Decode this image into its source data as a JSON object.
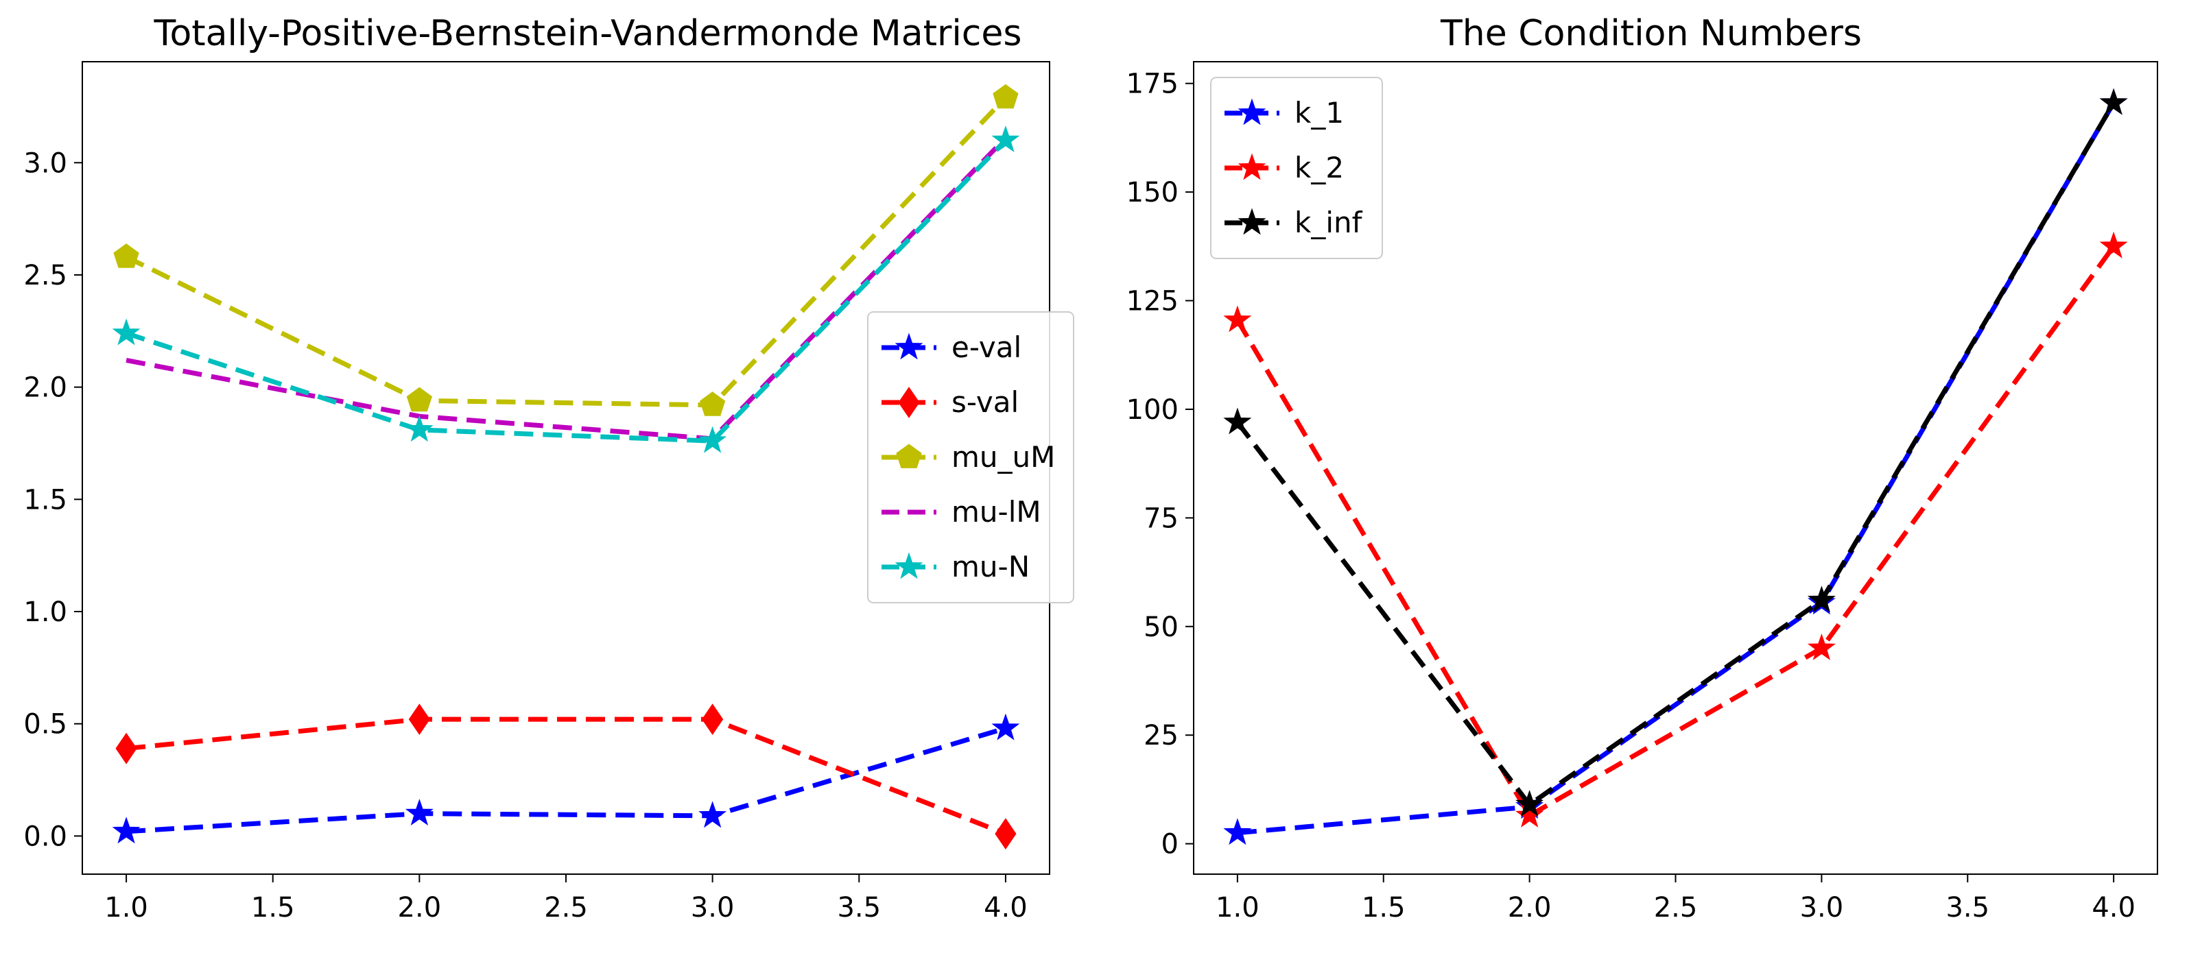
{
  "chart_data": [
    {
      "type": "line",
      "title": "Totally-Positive-Bernstein-Vandermonde Matrices",
      "xlabel": "",
      "ylabel": "",
      "x": [
        1.0,
        2.0,
        3.0,
        4.0
      ],
      "xlim": [
        0.85,
        4.15
      ],
      "ylim": [
        -0.17,
        3.45
      ],
      "xticks": [
        1.0,
        1.5,
        2.0,
        2.5,
        3.0,
        3.5,
        4.0
      ],
      "xtick_labels": [
        "1.0",
        "1.5",
        "2.0",
        "2.5",
        "3.0",
        "3.5",
        "4.0"
      ],
      "yticks": [
        0.0,
        0.5,
        1.0,
        1.5,
        2.0,
        2.5,
        3.0
      ],
      "ytick_labels": [
        "0.0",
        "0.5",
        "1.0",
        "1.5",
        "2.0",
        "2.5",
        "3.0"
      ],
      "grid": false,
      "legend_position": "center-right",
      "series": [
        {
          "name": "e-val",
          "values": [
            0.02,
            0.1,
            0.09,
            0.48
          ],
          "color": "#0000ff",
          "marker": "star"
        },
        {
          "name": "s-val",
          "values": [
            0.39,
            0.52,
            0.52,
            0.01
          ],
          "color": "#ff0000",
          "marker": "diamond"
        },
        {
          "name": "mu_uM",
          "values": [
            2.58,
            1.94,
            1.92,
            3.29
          ],
          "color": "#bfbf00",
          "marker": "pentagon"
        },
        {
          "name": "mu-lM",
          "values": [
            2.12,
            1.87,
            1.77,
            3.11
          ],
          "color": "#bf00bf",
          "marker": "none"
        },
        {
          "name": "mu-N",
          "values": [
            2.24,
            1.81,
            1.76,
            3.1
          ],
          "color": "#00bfbf",
          "marker": "star"
        }
      ]
    },
    {
      "type": "line",
      "title": "The Condition Numbers",
      "xlabel": "",
      "ylabel": "",
      "x": [
        1.0,
        2.0,
        3.0,
        4.0
      ],
      "xlim": [
        0.85,
        4.15
      ],
      "ylim": [
        -7,
        180
      ],
      "xticks": [
        1.0,
        1.5,
        2.0,
        2.5,
        3.0,
        3.5,
        4.0
      ],
      "xtick_labels": [
        "1.0",
        "1.5",
        "2.0",
        "2.5",
        "3.0",
        "3.5",
        "4.0"
      ],
      "yticks": [
        0,
        25,
        50,
        75,
        100,
        125,
        150,
        175
      ],
      "ytick_labels": [
        "0",
        "25",
        "50",
        "75",
        "100",
        "125",
        "150",
        "175"
      ],
      "grid": false,
      "legend_position": "top-left",
      "series": [
        {
          "name": "k_1",
          "values": [
            2.5,
            8.5,
            55.5,
            170.5
          ],
          "color": "#0000ff",
          "marker": "star"
        },
        {
          "name": "k_2",
          "values": [
            120.5,
            6.5,
            45.0,
            137.5
          ],
          "color": "#ff0000",
          "marker": "star"
        },
        {
          "name": "k_inf",
          "values": [
            97.0,
            9.0,
            56.0,
            170.5
          ],
          "color": "#000000",
          "marker": "star"
        }
      ]
    }
  ]
}
